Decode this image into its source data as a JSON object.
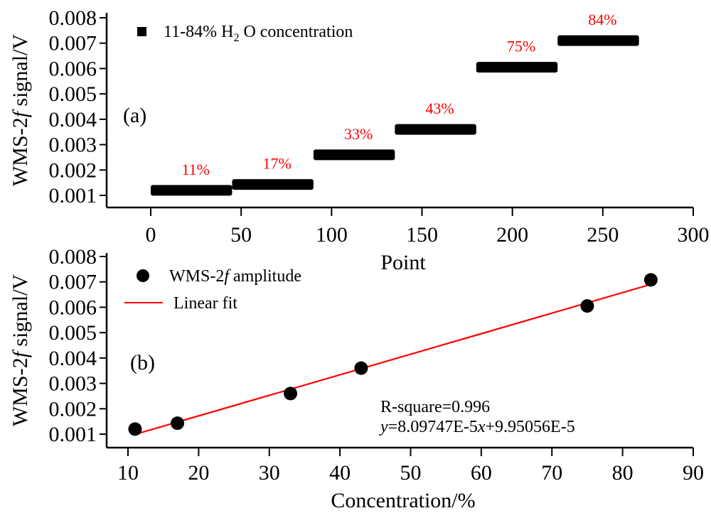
{
  "chart_data": [
    {
      "id": "a",
      "type": "line",
      "panel_label": "(a)",
      "xlabel": "Point",
      "ylabel": "WMS-2f signal/V",
      "ylabel_parts": [
        "WMS-2",
        "f",
        " signal/V"
      ],
      "xlim": [
        -25,
        300
      ],
      "ylim": [
        0.0005,
        0.008
      ],
      "xticks": [
        0,
        50,
        100,
        150,
        200,
        250,
        300
      ],
      "xtick_labels": [
        "0",
        "50",
        "100",
        "150",
        "200",
        "250",
        "300"
      ],
      "yticks": [
        0.001,
        0.002,
        0.003,
        0.004,
        0.005,
        0.006,
        0.007,
        0.008
      ],
      "ytick_labels": [
        "0.001",
        "0.002",
        "0.003",
        "0.004",
        "0.005",
        "0.006",
        "0.007",
        "0.008"
      ],
      "grid": false,
      "legend": {
        "placement": "top-left",
        "entries": [
          {
            "marker": "square",
            "color": "#000000",
            "label_parts": [
              "11-84% H",
              "2",
              " O concentration"
            ]
          }
        ]
      },
      "series": [
        {
          "name": "11-84% H2O concentration",
          "marker": "square",
          "color": "#000000",
          "segments": [
            {
              "label": "11%",
              "x_start": 0,
              "x_end": 45,
              "y": 0.0012
            },
            {
              "label": "17%",
              "x_start": 45,
              "x_end": 90,
              "y": 0.00143
            },
            {
              "label": "33%",
              "x_start": 90,
              "x_end": 135,
              "y": 0.0026
            },
            {
              "label": "43%",
              "x_start": 135,
              "x_end": 180,
              "y": 0.0036
            },
            {
              "label": "75%",
              "x_start": 180,
              "x_end": 225,
              "y": 0.00605
            },
            {
              "label": "84%",
              "x_start": 225,
              "x_end": 270,
              "y": 0.0071
            }
          ]
        }
      ],
      "annotation_color": "#ff0000"
    },
    {
      "id": "b",
      "type": "scatter",
      "panel_label": "(b)",
      "xlabel": "Concentration/%",
      "ylabel": "WMS-2f signal/V",
      "ylabel_parts": [
        "WMS-2",
        "f",
        " signal/V"
      ],
      "xlim": [
        5,
        90
      ],
      "ylim": [
        0.0005,
        0.008
      ],
      "xticks": [
        10,
        20,
        30,
        40,
        50,
        60,
        70,
        80,
        90
      ],
      "xtick_labels": [
        "10",
        "20",
        "30",
        "40",
        "50",
        "60",
        "70",
        "80",
        "90"
      ],
      "yticks": [
        0.001,
        0.002,
        0.003,
        0.004,
        0.005,
        0.006,
        0.007,
        0.008
      ],
      "ytick_labels": [
        "0.001",
        "0.002",
        "0.003",
        "0.004",
        "0.005",
        "0.006",
        "0.007",
        "0.008"
      ],
      "grid": false,
      "legend": {
        "placement": "top-left",
        "entries": [
          {
            "marker": "circle",
            "color": "#000000",
            "label_parts": [
              "WMS-2",
              "f",
              " amplitude"
            ]
          },
          {
            "marker": "line",
            "color": "#ff0000",
            "label_parts": [
              "Linear fit",
              "",
              ""
            ]
          }
        ]
      },
      "series": [
        {
          "name": "WMS-2f amplitude",
          "marker": "circle",
          "color": "#000000",
          "x": [
            11,
            17,
            33,
            43,
            75,
            84
          ],
          "y": [
            0.0012,
            0.00143,
            0.0026,
            0.0036,
            0.00605,
            0.00708
          ]
        },
        {
          "name": "Linear fit",
          "style": "line",
          "color": "#ff0000",
          "slope": 8.09747e-05,
          "intercept": 9.95056e-05,
          "x_range": [
            11,
            84
          ]
        }
      ],
      "fit_annotation": {
        "r_square_text": "R-square=0.996",
        "equation_parts": [
          "y",
          "=8.09747E-5",
          "x",
          "+9.95056E-5"
        ]
      }
    }
  ]
}
